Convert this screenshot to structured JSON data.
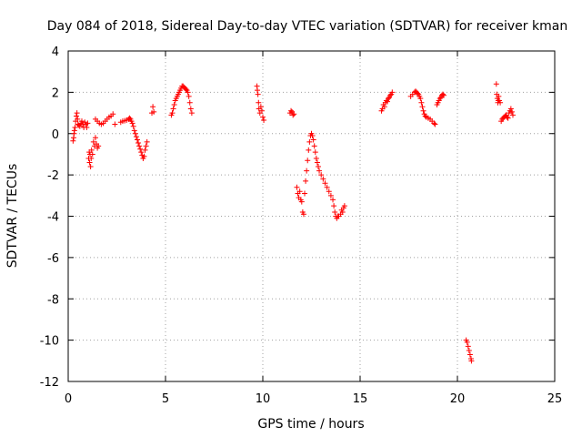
{
  "chart_data": {
    "type": "scatter",
    "title": "Day 084 of 2018, Sidereal Day-to-day VTEC variation (SDTVAR) for receiver kman",
    "xlabel": "GPS time / hours",
    "ylabel": "SDTVAR / TECUs",
    "xlim": [
      0,
      25
    ],
    "ylim": [
      -12,
      4
    ],
    "xticks": [
      0,
      5,
      10,
      15,
      20,
      25
    ],
    "yticks": [
      -12,
      -10,
      -8,
      -6,
      -4,
      -2,
      0,
      2,
      4
    ],
    "grid": true,
    "marker": "+",
    "color": "#ff0000",
    "series": [
      {
        "name": "SDTVAR",
        "points": [
          [
            0.25,
            -0.35
          ],
          [
            0.28,
            -0.2
          ],
          [
            0.3,
            0.0
          ],
          [
            0.32,
            0.15
          ],
          [
            0.35,
            0.3
          ],
          [
            0.38,
            0.6
          ],
          [
            0.42,
            0.85
          ],
          [
            0.45,
            1.0
          ],
          [
            0.48,
            0.7
          ],
          [
            0.5,
            0.45
          ],
          [
            0.55,
            0.4
          ],
          [
            0.6,
            0.35
          ],
          [
            0.65,
            0.5
          ],
          [
            0.7,
            0.6
          ],
          [
            0.75,
            0.45
          ],
          [
            0.8,
            0.3
          ],
          [
            0.85,
            0.55
          ],
          [
            0.9,
            0.45
          ],
          [
            0.95,
            0.3
          ],
          [
            1.0,
            0.5
          ],
          [
            1.05,
            -1.2
          ],
          [
            1.08,
            -0.9
          ],
          [
            1.1,
            -1.4
          ],
          [
            1.12,
            -1.0
          ],
          [
            1.15,
            -1.6
          ],
          [
            1.18,
            -1.2
          ],
          [
            1.2,
            -0.8
          ],
          [
            1.25,
            -1.0
          ],
          [
            1.3,
            -0.4
          ],
          [
            1.35,
            -0.6
          ],
          [
            1.4,
            -0.2
          ],
          [
            1.45,
            -0.5
          ],
          [
            1.5,
            -0.7
          ],
          [
            1.55,
            -0.6
          ],
          [
            1.4,
            0.7
          ],
          [
            1.5,
            0.6
          ],
          [
            1.6,
            0.5
          ],
          [
            1.7,
            0.45
          ],
          [
            1.8,
            0.5
          ],
          [
            1.9,
            0.6
          ],
          [
            2.0,
            0.7
          ],
          [
            2.1,
            0.8
          ],
          [
            2.2,
            0.85
          ],
          [
            2.3,
            0.95
          ],
          [
            2.4,
            0.45
          ],
          [
            2.7,
            0.55
          ],
          [
            2.8,
            0.6
          ],
          [
            2.9,
            0.62
          ],
          [
            3.0,
            0.65
          ],
          [
            3.1,
            0.7
          ],
          [
            3.15,
            0.75
          ],
          [
            3.2,
            0.7
          ],
          [
            3.25,
            0.6
          ],
          [
            3.3,
            0.5
          ],
          [
            3.35,
            0.35
          ],
          [
            3.4,
            0.15
          ],
          [
            3.45,
            0.0
          ],
          [
            3.5,
            -0.15
          ],
          [
            3.55,
            -0.3
          ],
          [
            3.6,
            -0.45
          ],
          [
            3.65,
            -0.6
          ],
          [
            3.7,
            -0.75
          ],
          [
            3.75,
            -0.9
          ],
          [
            3.8,
            -1.05
          ],
          [
            3.85,
            -1.2
          ],
          [
            3.9,
            -1.1
          ],
          [
            3.95,
            -0.8
          ],
          [
            4.0,
            -0.6
          ],
          [
            4.05,
            -0.4
          ],
          [
            4.3,
            1.0
          ],
          [
            4.35,
            1.3
          ],
          [
            4.4,
            1.05
          ],
          [
            5.3,
            0.9
          ],
          [
            5.35,
            1.0
          ],
          [
            5.4,
            1.2
          ],
          [
            5.45,
            1.4
          ],
          [
            5.5,
            1.6
          ],
          [
            5.55,
            1.7
          ],
          [
            5.6,
            1.8
          ],
          [
            5.65,
            1.9
          ],
          [
            5.7,
            2.0
          ],
          [
            5.75,
            2.1
          ],
          [
            5.8,
            2.2
          ],
          [
            5.85,
            2.3
          ],
          [
            5.9,
            2.3
          ],
          [
            5.95,
            2.25
          ],
          [
            6.0,
            2.2
          ],
          [
            6.05,
            2.15
          ],
          [
            6.1,
            2.1
          ],
          [
            6.15,
            2.0
          ],
          [
            6.2,
            1.8
          ],
          [
            6.25,
            1.5
          ],
          [
            6.3,
            1.2
          ],
          [
            6.35,
            1.0
          ],
          [
            9.7,
            2.3
          ],
          [
            9.72,
            2.1
          ],
          [
            9.75,
            1.9
          ],
          [
            9.78,
            1.5
          ],
          [
            9.8,
            1.2
          ],
          [
            9.85,
            1.0
          ],
          [
            9.9,
            1.3
          ],
          [
            9.95,
            1.1
          ],
          [
            10.0,
            0.8
          ],
          [
            10.05,
            0.65
          ],
          [
            11.4,
            1.0
          ],
          [
            11.45,
            1.1
          ],
          [
            11.5,
            1.05
          ],
          [
            11.55,
            0.9
          ],
          [
            11.6,
            0.95
          ],
          [
            11.75,
            -2.6
          ],
          [
            11.8,
            -2.9
          ],
          [
            11.85,
            -3.1
          ],
          [
            11.9,
            -2.8
          ],
          [
            11.95,
            -3.2
          ],
          [
            12.0,
            -3.3
          ],
          [
            12.05,
            -3.8
          ],
          [
            12.1,
            -3.9
          ],
          [
            12.15,
            -2.9
          ],
          [
            12.2,
            -2.3
          ],
          [
            12.25,
            -1.8
          ],
          [
            12.3,
            -1.3
          ],
          [
            12.35,
            -0.8
          ],
          [
            12.4,
            -0.4
          ],
          [
            12.45,
            -0.1
          ],
          [
            12.5,
            0.0
          ],
          [
            12.55,
            -0.1
          ],
          [
            12.6,
            -0.3
          ],
          [
            12.65,
            -0.6
          ],
          [
            12.7,
            -0.9
          ],
          [
            12.75,
            -1.2
          ],
          [
            12.8,
            -1.4
          ],
          [
            12.85,
            -1.6
          ],
          [
            12.9,
            -1.8
          ],
          [
            13.0,
            -2.0
          ],
          [
            13.1,
            -2.2
          ],
          [
            13.2,
            -2.4
          ],
          [
            13.3,
            -2.6
          ],
          [
            13.4,
            -2.8
          ],
          [
            13.5,
            -3.0
          ],
          [
            13.6,
            -3.2
          ],
          [
            13.65,
            -3.5
          ],
          [
            13.7,
            -3.8
          ],
          [
            13.75,
            -4.0
          ],
          [
            13.8,
            -4.1
          ],
          [
            13.85,
            -4.0
          ],
          [
            13.9,
            -4.0
          ],
          [
            14.0,
            -3.9
          ],
          [
            14.05,
            -3.7
          ],
          [
            14.1,
            -3.8
          ],
          [
            14.15,
            -3.6
          ],
          [
            14.2,
            -3.5
          ],
          [
            16.1,
            1.1
          ],
          [
            16.15,
            1.2
          ],
          [
            16.2,
            1.4
          ],
          [
            16.25,
            1.3
          ],
          [
            16.3,
            1.5
          ],
          [
            16.35,
            1.6
          ],
          [
            16.4,
            1.55
          ],
          [
            16.45,
            1.7
          ],
          [
            16.5,
            1.75
          ],
          [
            16.55,
            1.85
          ],
          [
            16.6,
            1.9
          ],
          [
            16.65,
            2.0
          ],
          [
            17.6,
            1.8
          ],
          [
            17.7,
            1.9
          ],
          [
            17.8,
            2.0
          ],
          [
            17.85,
            2.05
          ],
          [
            17.9,
            2.0
          ],
          [
            17.95,
            1.95
          ],
          [
            18.0,
            1.9
          ],
          [
            18.05,
            1.8
          ],
          [
            18.1,
            1.7
          ],
          [
            18.15,
            1.5
          ],
          [
            18.2,
            1.3
          ],
          [
            18.25,
            1.1
          ],
          [
            18.3,
            0.95
          ],
          [
            18.35,
            0.85
          ],
          [
            18.4,
            0.8
          ],
          [
            18.5,
            0.75
          ],
          [
            18.6,
            0.7
          ],
          [
            18.7,
            0.6
          ],
          [
            18.8,
            0.5
          ],
          [
            18.85,
            0.45
          ],
          [
            18.95,
            1.4
          ],
          [
            19.0,
            1.5
          ],
          [
            19.05,
            1.6
          ],
          [
            19.1,
            1.7
          ],
          [
            19.15,
            1.75
          ],
          [
            19.2,
            1.85
          ],
          [
            19.25,
            1.9
          ],
          [
            19.3,
            1.85
          ],
          [
            20.45,
            -10.0
          ],
          [
            20.5,
            -10.1
          ],
          [
            20.55,
            -10.3
          ],
          [
            20.6,
            -10.5
          ],
          [
            20.65,
            -10.7
          ],
          [
            20.7,
            -10.9
          ],
          [
            20.72,
            -11.0
          ],
          [
            22.0,
            2.4
          ],
          [
            22.02,
            1.9
          ],
          [
            22.05,
            1.7
          ],
          [
            22.08,
            1.5
          ],
          [
            22.1,
            1.6
          ],
          [
            22.12,
            1.8
          ],
          [
            22.15,
            1.6
          ],
          [
            22.2,
            1.5
          ],
          [
            22.25,
            0.6
          ],
          [
            22.3,
            0.7
          ],
          [
            22.35,
            0.75
          ],
          [
            22.4,
            0.8
          ],
          [
            22.45,
            0.85
          ],
          [
            22.5,
            0.9
          ],
          [
            22.55,
            0.8
          ],
          [
            22.6,
            0.75
          ],
          [
            22.65,
            1.0
          ],
          [
            22.7,
            1.1
          ],
          [
            22.75,
            1.2
          ],
          [
            22.8,
            1.05
          ],
          [
            22.85,
            0.9
          ]
        ]
      }
    ]
  }
}
